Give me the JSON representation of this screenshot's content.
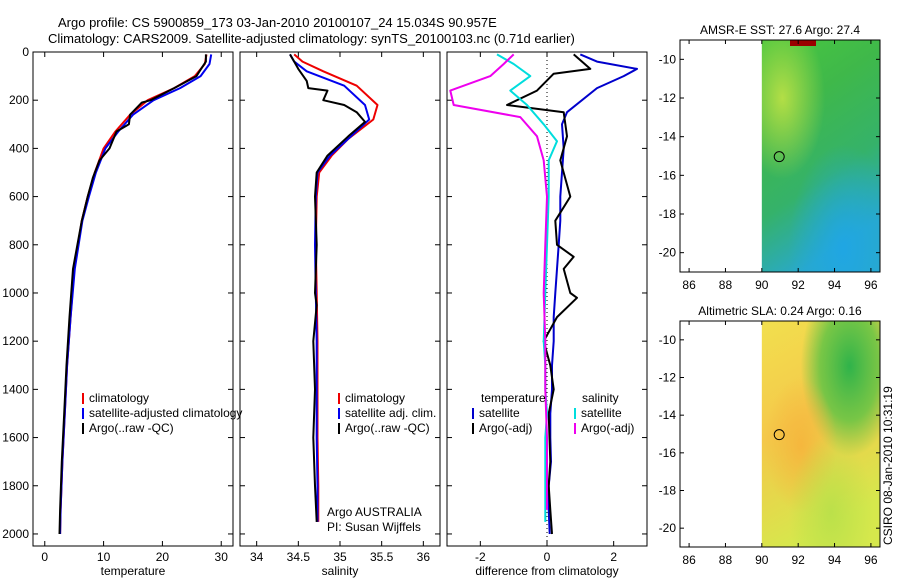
{
  "header": {
    "line1": "Argo profile: CS 5900859_173 03-Jan-2010 20100107_24 15.034S 90.957E",
    "line2": "Climatology: CARS2009. Satellite-adjusted climatology: synTS_20100103.nc (0.71d earlier)"
  },
  "footer_note": "CSIRO 08-Jan-2010 10:31:19",
  "chart_data": [
    {
      "type": "line",
      "panel": "temperature",
      "xlabel": "temperature",
      "ylabel": "",
      "xlim": [
        -2,
        32
      ],
      "ylim": [
        2050,
        0
      ],
      "xticks": [
        0,
        10,
        20,
        30
      ],
      "yticks": [
        0,
        200,
        400,
        600,
        800,
        1000,
        1200,
        1400,
        1600,
        1800,
        2000
      ],
      "legend": [
        "climatology",
        "satellite-adjusted climatology",
        "Argo(..raw -QC)"
      ],
      "series": [
        {
          "name": "climatology",
          "color": "#ee0000",
          "x": [
            27.5,
            27.2,
            25.5,
            22,
            17.5,
            14.5,
            12,
            10,
            8.5,
            7.3,
            6.3,
            5,
            4.4,
            3.8,
            3.4,
            3,
            2.7,
            2.6
          ],
          "y": [
            10,
            50,
            100,
            150,
            200,
            260,
            330,
            400,
            500,
            600,
            700,
            900,
            1100,
            1300,
            1500,
            1700,
            1900,
            2000
          ]
        },
        {
          "name": "satellite-adjusted climatology",
          "color": "#0000ee",
          "x": [
            28.3,
            28,
            26.5,
            23,
            18.5,
            15,
            12.5,
            10.3,
            8.7,
            7.5,
            6.4,
            5.1,
            4.4,
            3.8,
            3.4,
            3,
            2.7,
            2.6
          ],
          "y": [
            10,
            50,
            100,
            150,
            200,
            260,
            330,
            400,
            500,
            600,
            700,
            900,
            1100,
            1300,
            1500,
            1700,
            1900,
            2000
          ]
        },
        {
          "name": "Argo(..raw -QC)",
          "color": "#000000",
          "x": [
            27.4,
            27.4,
            26.3,
            25.8,
            22,
            18,
            16.5,
            14.5,
            14.3,
            12.2,
            11,
            9.3,
            8.2,
            7.3,
            6.3,
            4.8,
            4.2,
            3.7,
            3.3,
            2.9,
            2.6,
            2.5
          ],
          "y": [
            10,
            40,
            80,
            100,
            150,
            200,
            210,
            260,
            300,
            330,
            400,
            450,
            520,
            600,
            700,
            900,
            1100,
            1300,
            1500,
            1700,
            1900,
            2000
          ]
        }
      ]
    },
    {
      "type": "line",
      "panel": "salinity",
      "xlabel": "salinity",
      "ylabel": "",
      "xlim": [
        33.8,
        36.2
      ],
      "ylim": [
        2050,
        0
      ],
      "xticks": [
        34,
        34.5,
        35,
        35.5,
        36
      ],
      "legend": [
        "climatology",
        "satellite adj. clim.",
        "Argo(..raw -QC)"
      ],
      "annotation": [
        "Argo AUSTRALIA",
        "PI: Susan Wijffels"
      ],
      "series": [
        {
          "name": "climatology",
          "color": "#ee0000",
          "x": [
            34.45,
            34.55,
            34.8,
            35.2,
            35.45,
            35.4,
            35.1,
            34.9,
            34.75,
            34.72,
            34.71,
            34.72,
            34.73,
            34.73,
            34.73,
            34.74,
            34.74
          ],
          "y": [
            10,
            40,
            80,
            140,
            220,
            280,
            360,
            430,
            500,
            600,
            800,
            1000,
            1200,
            1400,
            1600,
            1800,
            1950
          ]
        },
        {
          "name": "satellite adj. clim.",
          "color": "#0000ee",
          "x": [
            34.4,
            34.45,
            34.6,
            35.05,
            35.3,
            35.35,
            35.1,
            34.88,
            34.73,
            34.71,
            34.7,
            34.71,
            34.72,
            34.72,
            34.72,
            34.73,
            34.73
          ],
          "y": [
            10,
            40,
            80,
            140,
            220,
            280,
            360,
            430,
            500,
            600,
            800,
            1000,
            1200,
            1400,
            1600,
            1800,
            1950
          ]
        },
        {
          "name": "Argo(..raw -QC)",
          "color": "#000000",
          "x": [
            34.4,
            34.45,
            34.5,
            34.6,
            34.62,
            34.85,
            34.8,
            35.05,
            35.2,
            35.3,
            35.1,
            34.85,
            34.72,
            34.7,
            34.72,
            34.7,
            34.72,
            34.68,
            34.7,
            34.68,
            34.7,
            34.72
          ],
          "y": [
            10,
            40,
            70,
            120,
            150,
            160,
            200,
            220,
            250,
            290,
            350,
            430,
            500,
            600,
            800,
            1000,
            1050,
            1200,
            1400,
            1600,
            1800,
            1950
          ]
        }
      ]
    },
    {
      "type": "line",
      "panel": "difference",
      "xlabel": "difference from climatology",
      "ylabel": "",
      "xlim": [
        -3,
        3
      ],
      "ylim": [
        2050,
        0
      ],
      "xticks": [
        -2,
        0,
        2
      ],
      "legend": [
        "temperature",
        "satellite",
        "Argo(-adj)",
        "salinity",
        "satellite",
        "Argo(-adj)"
      ],
      "series": [
        {
          "name": "temperature satellite",
          "color": "#0000cc",
          "x": [
            1,
            1.5,
            2.7,
            2.3,
            1.5,
            0.6,
            0.45,
            0.5,
            0.45,
            0.4,
            0.4,
            0.35,
            0.3,
            0.25,
            0.2,
            0.2,
            0.15,
            0.15,
            0.1,
            0.1,
            0.12,
            0.05,
            0.05,
            0.08
          ],
          "y": [
            10,
            40,
            70,
            100,
            150,
            250,
            300,
            400,
            500,
            600,
            700,
            800,
            900,
            1000,
            1100,
            1200,
            1300,
            1400,
            1500,
            1600,
            1700,
            1800,
            1900,
            2000
          ]
        },
        {
          "name": "temperature Argo(-adj)",
          "color": "#000000",
          "x": [
            0.8,
            1.3,
            0.2,
            -0.3,
            -1.2,
            0.5,
            0.6,
            0.4,
            0.7,
            0.25,
            0.3,
            0.8,
            0.5,
            0.7,
            0.9,
            0.3,
            -0.1,
            0.1,
            0.2,
            0.05,
            0.1,
            0.05,
            0.1,
            0.15
          ],
          "y": [
            10,
            70,
            90,
            160,
            220,
            250,
            350,
            450,
            600,
            700,
            800,
            850,
            900,
            1000,
            1020,
            1100,
            1200,
            1300,
            1400,
            1500,
            1700,
            1800,
            1900,
            2000
          ]
        },
        {
          "name": "salinity satellite",
          "color": "#00dddd",
          "x": [
            -1.5,
            -1,
            -0.5,
            -1.1,
            -0.6,
            -0.1,
            0.3,
            0.05,
            0.05,
            0,
            -0.05,
            -0.1,
            -0.05,
            -0.05,
            0,
            -0.05,
            -0.05,
            -0.05,
            -0.05
          ],
          "y": [
            10,
            50,
            100,
            160,
            220,
            300,
            370,
            450,
            600,
            800,
            1000,
            1200,
            1300,
            1400,
            1500,
            1600,
            1700,
            1800,
            1950
          ]
        },
        {
          "name": "salinity Argo(-adj)",
          "color": "#ee00ee",
          "x": [
            -1,
            -1.3,
            -1.7,
            -2.9,
            -2.8,
            -0.8,
            -0.3,
            -0.1,
            0,
            -0.05,
            -0.1,
            -0.05,
            -0.05,
            0,
            0
          ],
          "y": [
            10,
            50,
            100,
            160,
            220,
            270,
            350,
            450,
            600,
            800,
            1000,
            1200,
            1400,
            1600,
            1900
          ]
        }
      ]
    },
    {
      "type": "heatmap",
      "panel": "sst-map",
      "title": "AMSR-E SST: 27.6 Argo: 27.4",
      "xlim": [
        85.5,
        96.5
      ],
      "ylim": [
        -21,
        -9
      ],
      "xticks": [
        86,
        88,
        90,
        92,
        94,
        96
      ],
      "yticks": [
        -10,
        -12,
        -14,
        -16,
        -18,
        -20
      ],
      "data_lon_range": [
        90,
        96.5
      ],
      "argo_position": {
        "lon": 90.957,
        "lat": -15.034
      }
    },
    {
      "type": "heatmap",
      "panel": "sla-map",
      "title": "Altimetric SLA: 0.24 Argo: 0.16",
      "xlim": [
        85.5,
        96.5
      ],
      "ylim": [
        -21,
        -9
      ],
      "xticks": [
        86,
        88,
        90,
        92,
        94,
        96
      ],
      "yticks": [
        -10,
        -12,
        -14,
        -16,
        -18,
        -20
      ],
      "data_lon_range": [
        90,
        96.5
      ],
      "argo_position": {
        "lon": 90.957,
        "lat": -15.034
      }
    }
  ]
}
